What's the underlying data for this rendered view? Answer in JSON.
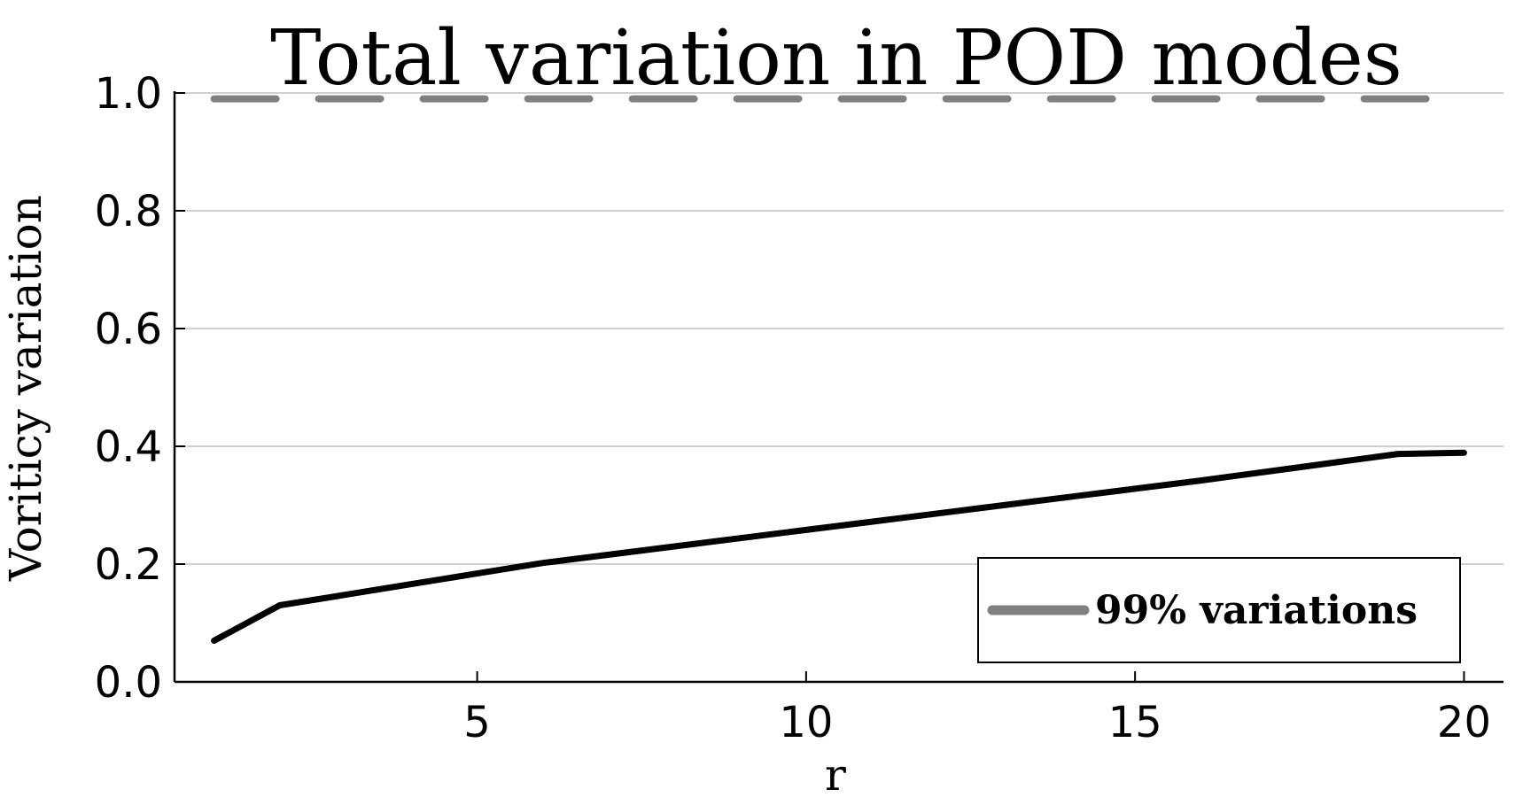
{
  "chart_data": {
    "type": "line",
    "title": "Total variation in POD modes",
    "xlabel": "r",
    "ylabel": "Voriticy variation",
    "xlim": [
      0.4,
      20.6
    ],
    "ylim": [
      0.0,
      1.0
    ],
    "xticks": [
      5,
      10,
      15,
      20
    ],
    "xtick_labels": [
      "5",
      "10",
      "15",
      "20"
    ],
    "yticks": [
      0.0,
      0.2,
      0.4,
      0.6,
      0.8,
      1.0
    ],
    "ytick_labels": [
      "0.0",
      "0.2",
      "0.4",
      "0.6",
      "0.8",
      "1.0"
    ],
    "grid": "horizontal",
    "legend_position": "bottom-right",
    "series": [
      {
        "type": "line",
        "color": "#000000",
        "style": "solid",
        "x": [
          1,
          2,
          3,
          4,
          5,
          6,
          7,
          8,
          9,
          10,
          11,
          12,
          13,
          14,
          15,
          16,
          17,
          18,
          19,
          20
        ],
        "y": [
          0.07,
          0.13,
          0.148,
          0.166,
          0.184,
          0.202,
          0.216,
          0.23,
          0.244,
          0.258,
          0.272,
          0.286,
          0.3,
          0.314,
          0.328,
          0.342,
          0.357,
          0.372,
          0.387,
          0.389
        ]
      },
      {
        "name": "99% variations",
        "type": "hline",
        "color": "#808080",
        "style": "dashed",
        "x": [
          1,
          20
        ],
        "y": [
          0.99,
          0.99
        ]
      }
    ]
  }
}
